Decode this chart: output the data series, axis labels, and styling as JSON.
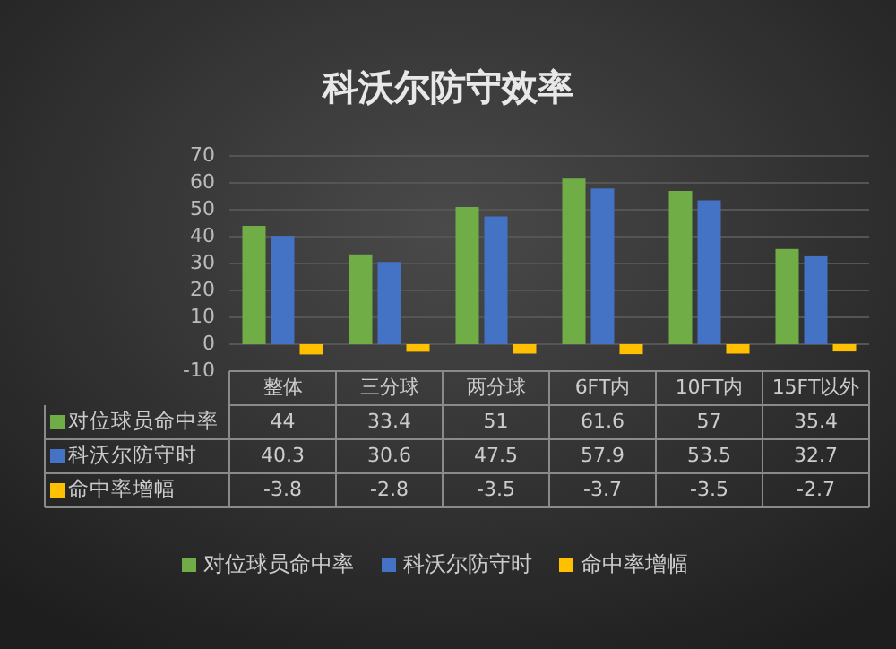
{
  "chart_data": {
    "type": "bar",
    "title": "科沃尔防守效率",
    "categories": [
      "整体",
      "三分球",
      "两分球",
      "6FT内",
      "10FT内",
      "15FT以外"
    ],
    "series": [
      {
        "name": "对位球员命中率",
        "color": "#70ad47",
        "values": [
          44,
          33.4,
          51,
          61.6,
          57,
          35.4
        ]
      },
      {
        "name": "科沃尔防守时",
        "color": "#4472c4",
        "values": [
          40.3,
          30.6,
          47.5,
          57.9,
          53.5,
          32.7
        ]
      },
      {
        "name": "命中率增幅",
        "color": "#ffc000",
        "values": [
          -3.8,
          -2.8,
          -3.5,
          -3.7,
          -3.5,
          -2.7
        ]
      }
    ],
    "ylim": [
      -10,
      70
    ],
    "yticks": [
      -10,
      0,
      10,
      20,
      30,
      40,
      50,
      60,
      70
    ],
    "grid": "y",
    "legend": "bottom",
    "data_labels": true
  }
}
